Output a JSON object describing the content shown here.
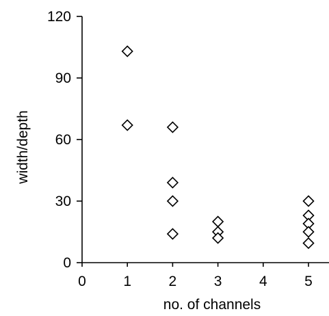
{
  "chart_data": {
    "type": "scatter",
    "xlabel": "no. of channels",
    "ylabel": "width/depth",
    "xlim": [
      0,
      5.5
    ],
    "ylim": [
      0,
      120
    ],
    "xticks": [
      0,
      1,
      2,
      3,
      4,
      5
    ],
    "yticks": [
      0,
      30,
      60,
      90,
      120
    ],
    "grid": false,
    "marker": "open-diamond",
    "marker_color": "#000000",
    "series": [
      {
        "points": [
          {
            "x": 1,
            "y": 103
          },
          {
            "x": 1,
            "y": 67
          },
          {
            "x": 2,
            "y": 66
          },
          {
            "x": 2,
            "y": 39
          },
          {
            "x": 2,
            "y": 30
          },
          {
            "x": 2,
            "y": 14
          },
          {
            "x": 3,
            "y": 20
          },
          {
            "x": 3,
            "y": 15
          },
          {
            "x": 3,
            "y": 12
          },
          {
            "x": 5,
            "y": 30
          },
          {
            "x": 5,
            "y": 23
          },
          {
            "x": 5,
            "y": 19
          },
          {
            "x": 5,
            "y": 15
          },
          {
            "x": 5,
            "y": 9.5
          }
        ]
      }
    ]
  }
}
